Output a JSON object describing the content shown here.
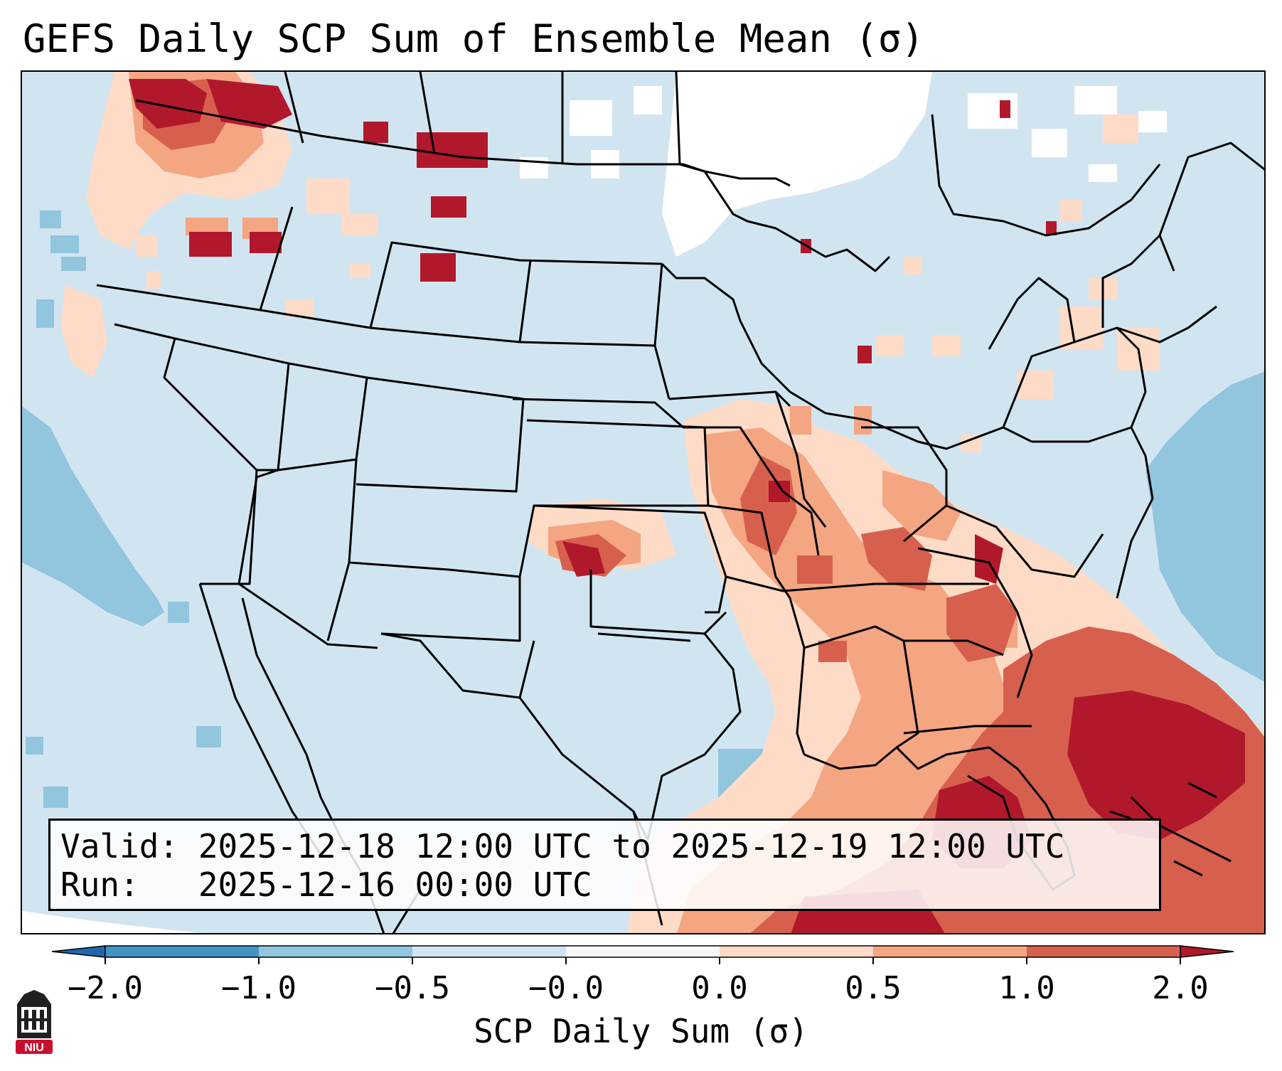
{
  "title": "GEFS Daily SCP Sum of Ensemble Mean (σ)",
  "info": {
    "valid": "Valid: 2025-12-18 12:00 UTC to 2025-12-19 12:00 UTC",
    "run": "Run:   2025-12-16 00:00 UTC"
  },
  "colorbar": {
    "label": "SCP Daily Sum (σ)",
    "ticks": [
      "−2.0",
      "−1.0",
      "−0.5",
      "−0.0",
      "0.0",
      "0.5",
      "1.0",
      "2.0"
    ],
    "levels": [
      -2.0,
      -1.0,
      -0.5,
      -0.0,
      0.0,
      0.5,
      1.0,
      2.0
    ],
    "colors": [
      "#4393c3",
      "#92c5de",
      "#d1e5f0",
      "#f7f7f7",
      "#fddbc7",
      "#f4a582",
      "#d6604d"
    ],
    "under_color": "#2166ac",
    "over_color": "#b2182b"
  },
  "logo": {
    "text": "NIU"
  },
  "colors": {
    "land_base": "#d1e5f0",
    "ocean_low": "#92c5de",
    "white_band": "#ffffff",
    "pos_light": "#fddbc7",
    "pos_mid": "#f4a582",
    "pos_strong": "#d6604d",
    "pos_extreme": "#b2182b"
  }
}
